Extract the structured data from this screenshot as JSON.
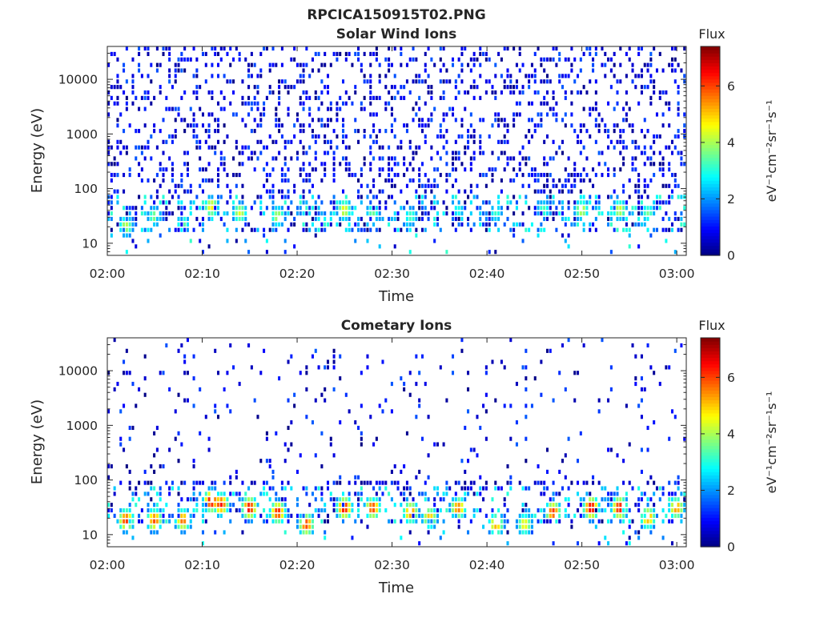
{
  "title": "RPCICA150915T02.PNG",
  "colorbar": {
    "label": "Flux",
    "unit_text": "eV⁻¹cm⁻²sr⁻¹s⁻¹",
    "ticks": [
      "0",
      "2",
      "4",
      "6"
    ],
    "range": [
      0,
      7.4
    ],
    "colormap": "jet"
  },
  "chart_data": [
    {
      "type": "heatmap",
      "title": "Solar Wind Ions",
      "xlabel": "Time",
      "ylabel": "Energy (eV)",
      "x_ticks": [
        "02:00",
        "02:10",
        "02:20",
        "02:30",
        "02:40",
        "02:50",
        "03:00"
      ],
      "y_ticks": [
        "10",
        "100",
        "1000",
        "10000"
      ],
      "y_scale": "log",
      "xlim": [
        "02:00",
        "03:01"
      ],
      "ylim": [
        6,
        40000
      ],
      "color_value_max": 7.4,
      "background": "sparse low-flux (0-2) speckle across 10 eV - 40 keV; moderate flux (2-5) bands near 15-60 eV",
      "enhancements": [
        {
          "t": "02:02",
          "e": 20,
          "v": 4.2
        },
        {
          "t": "02:05",
          "e": 30,
          "v": 3.8
        },
        {
          "t": "02:08",
          "e": 22,
          "v": 3.6
        },
        {
          "t": "02:11",
          "e": 45,
          "v": 4.8
        },
        {
          "t": "02:14",
          "e": 35,
          "v": 4.4
        },
        {
          "t": "02:18",
          "e": 30,
          "v": 4.2
        },
        {
          "t": "02:21",
          "e": 40,
          "v": 3.2
        },
        {
          "t": "02:25",
          "e": 40,
          "v": 4.6
        },
        {
          "t": "02:28",
          "e": 35,
          "v": 3.6
        },
        {
          "t": "02:32",
          "e": 30,
          "v": 3.4
        },
        {
          "t": "02:37",
          "e": 40,
          "v": 3.0
        },
        {
          "t": "02:41",
          "e": 35,
          "v": 3.2
        },
        {
          "t": "02:46",
          "e": 40,
          "v": 3.4
        },
        {
          "t": "02:50",
          "e": 40,
          "v": 4.4
        },
        {
          "t": "02:54",
          "e": 40,
          "v": 4.4
        },
        {
          "t": "02:57",
          "e": 35,
          "v": 3.6
        }
      ]
    },
    {
      "type": "heatmap",
      "title": "Cometary Ions",
      "xlabel": "Time",
      "ylabel": "Energy (eV)",
      "x_ticks": [
        "02:00",
        "02:10",
        "02:20",
        "02:30",
        "02:40",
        "02:50",
        "03:00"
      ],
      "y_ticks": [
        "10",
        "100",
        "1000",
        "10000"
      ],
      "y_scale": "log",
      "xlim": [
        "02:00",
        "03:01"
      ],
      "ylim": [
        6,
        40000
      ],
      "color_value_max": 7.4,
      "background": "sparse low-flux speckle above 200 eV; cometary ion bursts 10-100 eV",
      "enhancements": [
        {
          "t": "02:02",
          "e": 18,
          "v": 6.2
        },
        {
          "t": "02:05",
          "e": 18,
          "v": 6.0
        },
        {
          "t": "02:08",
          "e": 18,
          "v": 5.8
        },
        {
          "t": "02:11",
          "e": 40,
          "v": 6.8
        },
        {
          "t": "02:12",
          "e": 35,
          "v": 6.4
        },
        {
          "t": "02:15",
          "e": 30,
          "v": 6.6
        },
        {
          "t": "02:18",
          "e": 25,
          "v": 6.4
        },
        {
          "t": "02:21",
          "e": 15,
          "v": 6.2
        },
        {
          "t": "02:25",
          "e": 30,
          "v": 6.6
        },
        {
          "t": "02:28",
          "e": 30,
          "v": 6.2
        },
        {
          "t": "02:32",
          "e": 25,
          "v": 5.8
        },
        {
          "t": "02:34",
          "e": 20,
          "v": 5.2
        },
        {
          "t": "02:37",
          "e": 30,
          "v": 5.8
        },
        {
          "t": "02:41",
          "e": 15,
          "v": 5.4
        },
        {
          "t": "02:44",
          "e": 15,
          "v": 4.8
        },
        {
          "t": "02:47",
          "e": 25,
          "v": 6.2
        },
        {
          "t": "02:51",
          "e": 30,
          "v": 6.8
        },
        {
          "t": "02:54",
          "e": 30,
          "v": 6.6
        },
        {
          "t": "02:57",
          "e": 20,
          "v": 5.6
        },
        {
          "t": "03:00",
          "e": 30,
          "v": 5.6
        }
      ]
    }
  ]
}
